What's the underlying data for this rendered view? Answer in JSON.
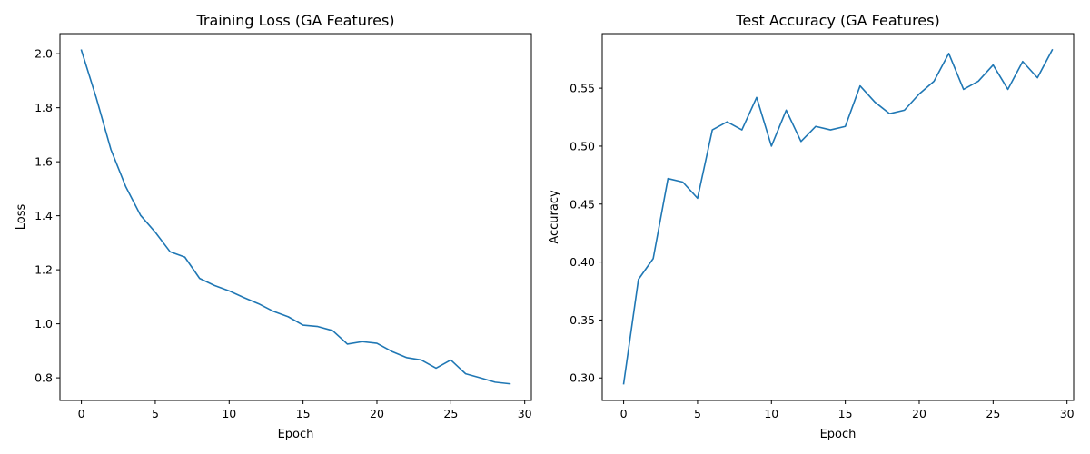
{
  "colors": {
    "series": "#1f77b4",
    "background": "#ffffff",
    "axis": "#000000"
  },
  "chart_data": [
    {
      "type": "line",
      "title": "Training Loss (GA Features)",
      "xlabel": "Epoch",
      "ylabel": "Loss",
      "xlim": [
        -1.45,
        30.45
      ],
      "ylim": [
        0.7163,
        2.0745
      ],
      "xticks": [
        0,
        5,
        10,
        15,
        20,
        25,
        30
      ],
      "yticks": [
        0.8,
        1.0,
        1.2,
        1.4,
        1.6,
        1.8,
        2.0
      ],
      "ytick_decimals": 1,
      "grid": false,
      "series": [
        {
          "x": [
            0,
            1,
            2,
            3,
            4,
            5,
            6,
            7,
            8,
            9,
            10,
            11,
            12,
            13,
            14,
            15,
            16,
            17,
            18,
            19,
            20,
            21,
            22,
            23,
            24,
            25,
            26,
            27,
            28,
            29
          ],
          "values": [
            2.013,
            1.838,
            1.645,
            1.508,
            1.402,
            1.339,
            1.267,
            1.247,
            1.168,
            1.142,
            1.122,
            1.097,
            1.074,
            1.046,
            1.026,
            0.995,
            0.99,
            0.975,
            0.925,
            0.934,
            0.928,
            0.898,
            0.875,
            0.866,
            0.836,
            0.866,
            0.815,
            0.8,
            0.784,
            0.778
          ]
        }
      ]
    },
    {
      "type": "line",
      "title": "Test Accuracy (GA Features)",
      "xlabel": "Epoch",
      "ylabel": "Accuracy",
      "xlim": [
        -1.45,
        30.45
      ],
      "ylim": [
        0.2806,
        0.5971
      ],
      "xticks": [
        0,
        5,
        10,
        15,
        20,
        25,
        30
      ],
      "yticks": [
        0.3,
        0.35,
        0.4,
        0.45,
        0.5,
        0.55
      ],
      "ytick_decimals": 2,
      "grid": false,
      "series": [
        {
          "x": [
            0,
            1,
            2,
            3,
            4,
            5,
            6,
            7,
            8,
            9,
            10,
            11,
            12,
            13,
            14,
            15,
            16,
            17,
            18,
            19,
            20,
            21,
            22,
            23,
            24,
            25,
            26,
            27,
            28,
            29
          ],
          "values": [
            0.295,
            0.385,
            0.403,
            0.472,
            0.469,
            0.455,
            0.514,
            0.521,
            0.514,
            0.542,
            0.5,
            0.531,
            0.504,
            0.517,
            0.514,
            0.517,
            0.552,
            0.538,
            0.528,
            0.531,
            0.545,
            0.556,
            0.58,
            0.549,
            0.556,
            0.57,
            0.549,
            0.573,
            0.559,
            0.583
          ]
        }
      ]
    }
  ]
}
